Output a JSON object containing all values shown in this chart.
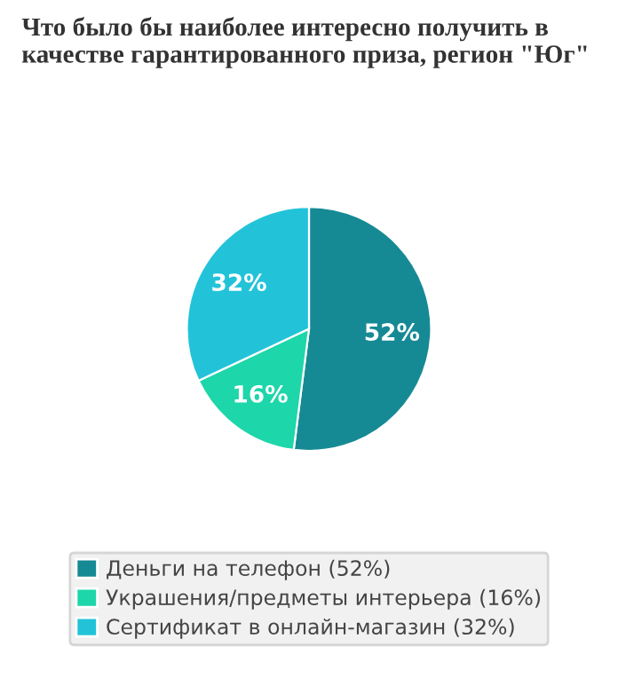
{
  "chart_data": {
    "type": "pie",
    "title": "Что было бы наиболее интересно получить в качестве гарантированного приза, регион \"Юг\"",
    "categories": [
      "Деньги на телефон (52%)",
      "Украшения/предметы интерьера (16%)",
      "Сертификат в онлайн-магазин (32%)"
    ],
    "values": [
      52,
      16,
      32
    ],
    "colors": [
      "#168a94",
      "#1dd6aa",
      "#22c3d9"
    ],
    "value_labels": [
      "52%",
      "16%",
      "32%"
    ],
    "legend": "bottom"
  }
}
